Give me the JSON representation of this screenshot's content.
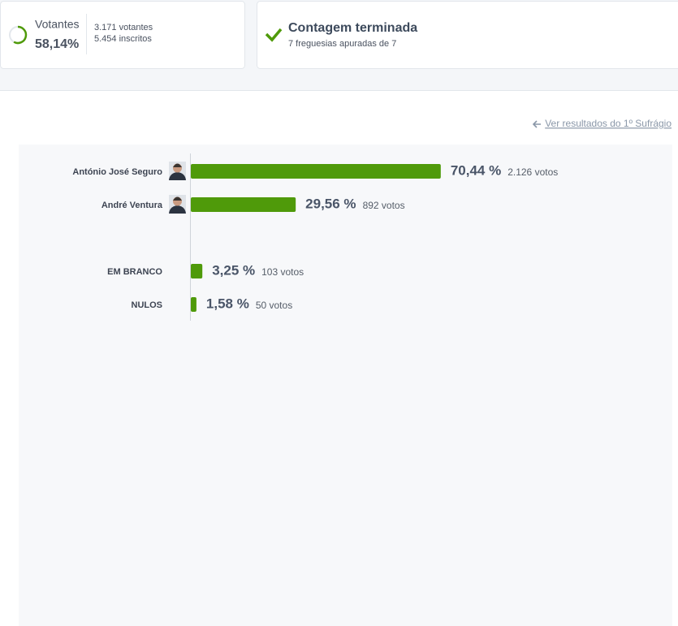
{
  "turnout": {
    "label": "Votantes",
    "value": 58.14,
    "value_label": "58,14%",
    "lim": [
      0,
      100
    ],
    "color": "#4f9a0a",
    "voters": "3.171 votantes",
    "registered": "5.454 inscritos"
  },
  "status": {
    "title": "Contagem terminada",
    "detail": "7 freguesias apuradas de 7"
  },
  "link": "Ver resultados do 1º Sufrágio",
  "chart_data": {
    "type": "bar",
    "orientation": "horizontal",
    "categories": [
      "António José Seguro",
      "André Ventura",
      "EM BRANCO",
      "NULOS"
    ],
    "values": [
      70.44,
      29.56,
      3.25,
      1.58
    ],
    "value_labels": [
      "70,44 %",
      "29,56 %",
      "3,25 %",
      "1,58 %"
    ],
    "vote_labels": [
      "2.126 votos",
      "892 votos",
      "103 votos",
      "50 votos"
    ],
    "has_photo": [
      true,
      true,
      false,
      false
    ],
    "color": "#4f9a0a",
    "xlim": [
      0,
      100
    ]
  }
}
